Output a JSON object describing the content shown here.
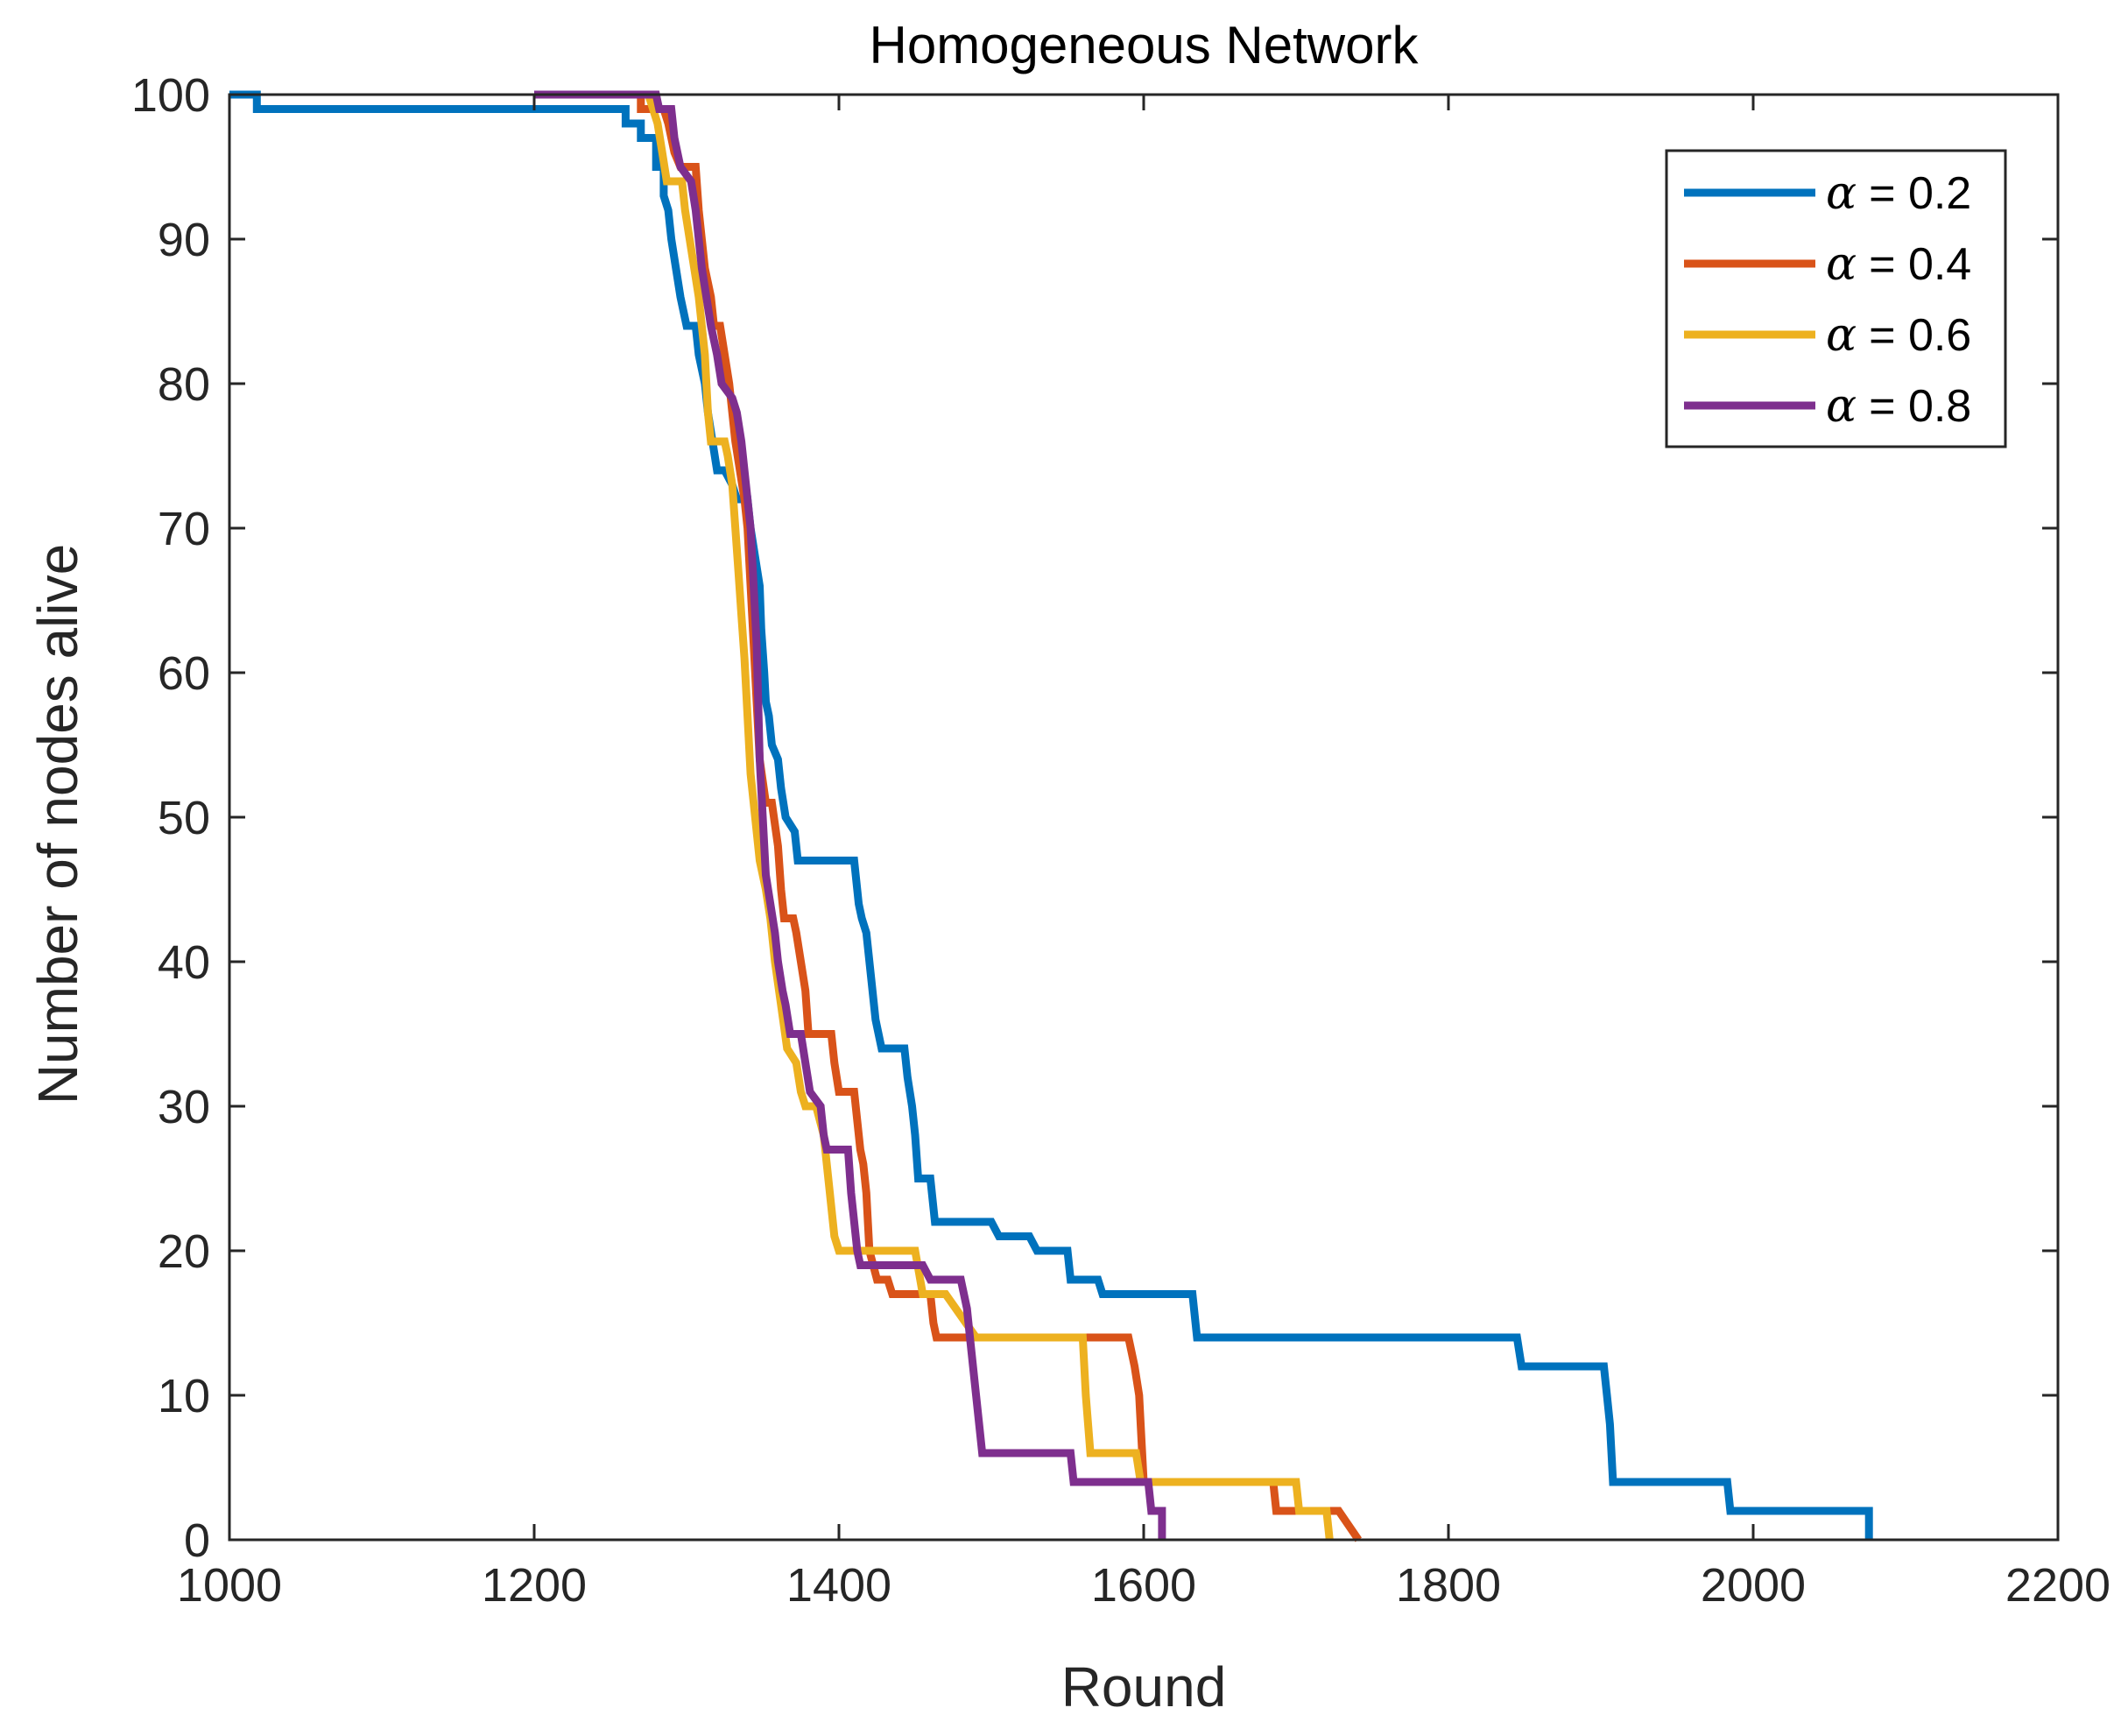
{
  "chart_data": {
    "type": "line",
    "title": "Homogeneous Network",
    "xlabel": "Round",
    "ylabel": "Number of nodes alive",
    "xlim": [
      1000,
      2200
    ],
    "ylim": [
      0,
      100
    ],
    "xticks": [
      1000,
      1200,
      1400,
      1600,
      1800,
      2000,
      2200
    ],
    "yticks": [
      0,
      10,
      20,
      30,
      40,
      50,
      60,
      70,
      80,
      90,
      100
    ],
    "xtick_labels": [
      "1000",
      "1200",
      "1400",
      "1600",
      "1800",
      "2000",
      "2200"
    ],
    "ytick_labels": [
      "0",
      "10",
      "20",
      "30",
      "40",
      "50",
      "60",
      "70",
      "80",
      "90",
      "100"
    ],
    "grid": false,
    "legend_position": "top-right",
    "legend_symbol": "α",
    "series": [
      {
        "name": "α = 0.2",
        "symbol": "α",
        "label_value": "= 0.2",
        "color": "#0072BD",
        "points": [
          [
            1000,
            100
          ],
          [
            1018,
            100
          ],
          [
            1018,
            99
          ],
          [
            1260,
            99
          ],
          [
            1260,
            98
          ],
          [
            1270,
            98
          ],
          [
            1270,
            97
          ],
          [
            1280,
            97
          ],
          [
            1280,
            95
          ],
          [
            1285,
            95
          ],
          [
            1285,
            93
          ],
          [
            1288,
            92
          ],
          [
            1290,
            90
          ],
          [
            1293,
            88
          ],
          [
            1296,
            86
          ],
          [
            1300,
            84
          ],
          [
            1306,
            84
          ],
          [
            1308,
            82
          ],
          [
            1312,
            80
          ],
          [
            1314,
            78
          ],
          [
            1317,
            76
          ],
          [
            1320,
            74
          ],
          [
            1325,
            74
          ],
          [
            1330,
            73
          ],
          [
            1333,
            72
          ],
          [
            1340,
            72
          ],
          [
            1342,
            70
          ],
          [
            1345,
            68
          ],
          [
            1348,
            66
          ],
          [
            1349,
            63
          ],
          [
            1351,
            60
          ],
          [
            1352,
            58
          ],
          [
            1354,
            57
          ],
          [
            1356,
            55
          ],
          [
            1360,
            54
          ],
          [
            1362,
            52
          ],
          [
            1365,
            50
          ],
          [
            1371,
            49
          ],
          [
            1373,
            47
          ],
          [
            1410,
            47
          ],
          [
            1413,
            44
          ],
          [
            1415,
            43
          ],
          [
            1418,
            42
          ],
          [
            1420,
            40
          ],
          [
            1422,
            38
          ],
          [
            1424,
            36
          ],
          [
            1428,
            34
          ],
          [
            1443,
            34
          ],
          [
            1445,
            32
          ],
          [
            1448,
            30
          ],
          [
            1450,
            28
          ],
          [
            1452,
            25
          ],
          [
            1460,
            25
          ],
          [
            1463,
            22
          ],
          [
            1500,
            22
          ],
          [
            1505,
            21
          ],
          [
            1525,
            21
          ],
          [
            1530,
            20
          ],
          [
            1550,
            20
          ],
          [
            1552,
            18
          ],
          [
            1570,
            18
          ],
          [
            1573,
            17
          ],
          [
            1632,
            17
          ],
          [
            1635,
            14
          ],
          [
            1845,
            14
          ],
          [
            1848,
            12
          ],
          [
            1902,
            12
          ],
          [
            1904,
            10
          ],
          [
            1906,
            8
          ],
          [
            1908,
            4
          ],
          [
            1983,
            4
          ],
          [
            1985,
            2
          ],
          [
            2076,
            2
          ],
          [
            2076,
            0
          ]
        ]
      },
      {
        "name": "α = 0.4",
        "symbol": "α",
        "label_value": "= 0.4",
        "color": "#D95319",
        "points": [
          [
            1255,
            100
          ],
          [
            1270,
            100
          ],
          [
            1270,
            99
          ],
          [
            1285,
            99
          ],
          [
            1288,
            98
          ],
          [
            1290,
            97
          ],
          [
            1292,
            96
          ],
          [
            1296,
            95
          ],
          [
            1306,
            95
          ],
          [
            1308,
            92
          ],
          [
            1310,
            90
          ],
          [
            1312,
            88
          ],
          [
            1316,
            86
          ],
          [
            1318,
            84
          ],
          [
            1322,
            84
          ],
          [
            1325,
            82
          ],
          [
            1328,
            80
          ],
          [
            1330,
            78
          ],
          [
            1332,
            76
          ],
          [
            1335,
            74
          ],
          [
            1338,
            72
          ],
          [
            1340,
            70
          ],
          [
            1342,
            66
          ],
          [
            1344,
            62
          ],
          [
            1346,
            58
          ],
          [
            1348,
            54
          ],
          [
            1352,
            51
          ],
          [
            1356,
            51
          ],
          [
            1360,
            48
          ],
          [
            1362,
            45
          ],
          [
            1364,
            43
          ],
          [
            1370,
            43
          ],
          [
            1372,
            42
          ],
          [
            1375,
            40
          ],
          [
            1378,
            38
          ],
          [
            1380,
            35
          ],
          [
            1395,
            35
          ],
          [
            1397,
            33
          ],
          [
            1400,
            31
          ],
          [
            1410,
            31
          ],
          [
            1412,
            29
          ],
          [
            1414,
            27
          ],
          [
            1416,
            26
          ],
          [
            1418,
            24
          ],
          [
            1420,
            20
          ],
          [
            1425,
            18
          ],
          [
            1432,
            18
          ],
          [
            1435,
            17
          ],
          [
            1460,
            17
          ],
          [
            1462,
            15
          ],
          [
            1464,
            14
          ],
          [
            1590,
            14
          ],
          [
            1594,
            12
          ],
          [
            1597,
            10
          ],
          [
            1600,
            4
          ],
          [
            1685,
            4
          ],
          [
            1687,
            2
          ],
          [
            1700,
            2
          ],
          [
            1728,
            2
          ],
          [
            1741,
            0
          ]
        ]
      },
      {
        "name": "α = 0.6",
        "symbol": "α",
        "label_value": "= 0.6",
        "color": "#EDB120",
        "points": [
          [
            1275,
            100
          ],
          [
            1278,
            99
          ],
          [
            1281,
            98
          ],
          [
            1284,
            96
          ],
          [
            1287,
            94
          ],
          [
            1297,
            94
          ],
          [
            1299,
            92
          ],
          [
            1302,
            90
          ],
          [
            1305,
            88
          ],
          [
            1308,
            86
          ],
          [
            1310,
            84
          ],
          [
            1312,
            82
          ],
          [
            1314,
            78
          ],
          [
            1316,
            76
          ],
          [
            1325,
            76
          ],
          [
            1327,
            75
          ],
          [
            1330,
            73
          ],
          [
            1332,
            70
          ],
          [
            1334,
            67
          ],
          [
            1336,
            64
          ],
          [
            1338,
            61
          ],
          [
            1340,
            57
          ],
          [
            1342,
            53
          ],
          [
            1345,
            50
          ],
          [
            1348,
            47
          ],
          [
            1352,
            45
          ],
          [
            1355,
            43
          ],
          [
            1358,
            40
          ],
          [
            1362,
            37
          ],
          [
            1366,
            34
          ],
          [
            1372,
            33
          ],
          [
            1375,
            31
          ],
          [
            1378,
            30
          ],
          [
            1385,
            30
          ],
          [
            1390,
            28
          ],
          [
            1392,
            26
          ],
          [
            1394,
            24
          ],
          [
            1397,
            21
          ],
          [
            1400,
            20
          ],
          [
            1450,
            20
          ],
          [
            1455,
            17
          ],
          [
            1470,
            17
          ],
          [
            1490,
            14
          ],
          [
            1560,
            14
          ],
          [
            1562,
            10
          ],
          [
            1565,
            6
          ],
          [
            1595,
            6
          ],
          [
            1598,
            4
          ],
          [
            1700,
            4
          ],
          [
            1702,
            2
          ],
          [
            1720,
            2
          ],
          [
            1722,
            0
          ]
        ]
      },
      {
        "name": "α = 0.8",
        "symbol": "α",
        "label_value": "= 0.8",
        "color": "#7E2F8E",
        "points": [
          [
            1200,
            100
          ],
          [
            1280,
            100
          ],
          [
            1282,
            99
          ],
          [
            1290,
            99
          ],
          [
            1292,
            97
          ],
          [
            1296,
            95
          ],
          [
            1303,
            94
          ],
          [
            1306,
            92
          ],
          [
            1308,
            90
          ],
          [
            1310,
            88
          ],
          [
            1313,
            86
          ],
          [
            1316,
            84
          ],
          [
            1320,
            82
          ],
          [
            1323,
            80
          ],
          [
            1330,
            79
          ],
          [
            1333,
            78
          ],
          [
            1336,
            76
          ],
          [
            1338,
            74
          ],
          [
            1340,
            72
          ],
          [
            1342,
            70
          ],
          [
            1344,
            66
          ],
          [
            1346,
            62
          ],
          [
            1347,
            58
          ],
          [
            1348,
            54
          ],
          [
            1350,
            50
          ],
          [
            1352,
            46
          ],
          [
            1355,
            44
          ],
          [
            1358,
            42
          ],
          [
            1360,
            40
          ],
          [
            1363,
            38
          ],
          [
            1365,
            37
          ],
          [
            1368,
            35
          ],
          [
            1375,
            35
          ],
          [
            1378,
            33
          ],
          [
            1381,
            31
          ],
          [
            1388,
            30
          ],
          [
            1390,
            28
          ],
          [
            1392,
            27
          ],
          [
            1406,
            27
          ],
          [
            1408,
            24
          ],
          [
            1410,
            22
          ],
          [
            1412,
            20
          ],
          [
            1414,
            19
          ],
          [
            1455,
            19
          ],
          [
            1460,
            18
          ],
          [
            1480,
            18
          ],
          [
            1484,
            16
          ],
          [
            1486,
            14
          ],
          [
            1490,
            10
          ],
          [
            1494,
            6
          ],
          [
            1552,
            6
          ],
          [
            1554,
            4
          ],
          [
            1603,
            4
          ],
          [
            1605,
            2
          ],
          [
            1612,
            2
          ],
          [
            1612,
            0
          ]
        ]
      }
    ]
  }
}
